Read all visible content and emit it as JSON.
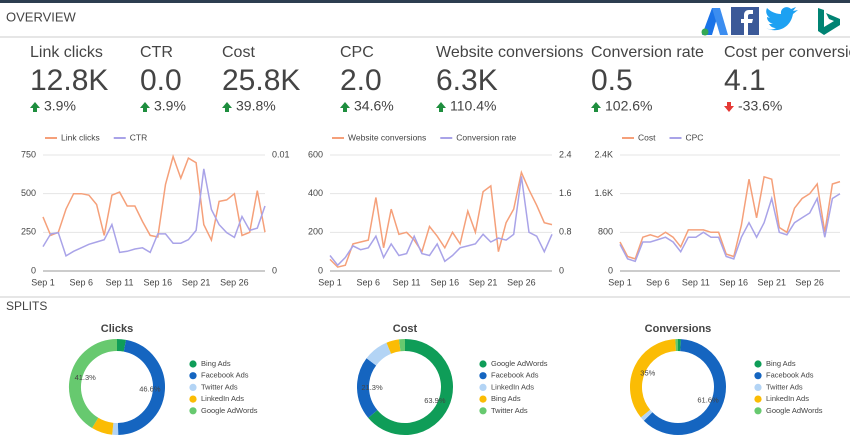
{
  "header": {
    "title": "OVERVIEW"
  },
  "kpis": [
    {
      "label": "Link clicks",
      "value": "12.8K",
      "change": "3.9%"
    },
    {
      "label": "CTR",
      "value": "0.0",
      "change": "3.9%"
    },
    {
      "label": "Cost",
      "value": "25.8K",
      "change": "39.8%"
    },
    {
      "label": "CPC",
      "value": "2.0",
      "change": "34.6%"
    },
    {
      "label": "Website conversions",
      "value": "6.3K",
      "change": "110.4%"
    },
    {
      "label": "Conversion rate",
      "value": "0.5",
      "change": "102.6%"
    },
    {
      "label": "Cost per conversion",
      "value": "4.1",
      "change": "-33.6%"
    }
  ],
  "splits_title": "SPLITS",
  "chart_data": [
    {
      "type": "line",
      "categories": [
        "Sep 1",
        null,
        null,
        null,
        null,
        "Sep 6",
        null,
        null,
        null,
        null,
        "Sep 11",
        null,
        null,
        null,
        null,
        "Sep 16",
        null,
        null,
        null,
        null,
        "Sep 21",
        null,
        null,
        null,
        null,
        "Sep 26",
        null,
        null,
        null,
        null
      ],
      "series": [
        {
          "name": "Link clicks",
          "color": "#f5a07a",
          "values": [
            350,
            230,
            250,
            400,
            500,
            500,
            490,
            430,
            230,
            490,
            510,
            420,
            420,
            320,
            230,
            220,
            560,
            740,
            600,
            730,
            700,
            300,
            200,
            450,
            460,
            500,
            230,
            250,
            520,
            250
          ]
        },
        {
          "name": "CTR",
          "color": "#a9a3e8",
          "axis": "y2",
          "values": [
            0.0021,
            0.0032,
            0.0033,
            0.0013,
            0.0017,
            0.002,
            0.0023,
            0.0025,
            0.0027,
            0.004,
            0.0016,
            0.0017,
            0.0019,
            0.002,
            0.0016,
            0.0032,
            0.0032,
            0.0024,
            0.0024,
            0.0027,
            0.0035,
            0.0088,
            0.0053,
            0.004,
            0.0033,
            0.0029,
            0.0047,
            0.0035,
            0.0037,
            0.0056
          ]
        }
      ],
      "ylim": [
        0,
        750
      ],
      "yticks": [
        0,
        250,
        500,
        750
      ],
      "y2lim": [
        0,
        0.01
      ],
      "y2ticks": [
        0,
        0.01
      ],
      "grid": true
    },
    {
      "type": "line",
      "categories": [
        "Sep 1",
        null,
        null,
        null,
        null,
        "Sep 6",
        null,
        null,
        null,
        null,
        "Sep 11",
        null,
        null,
        null,
        null,
        "Sep 16",
        null,
        null,
        null,
        null,
        "Sep 21",
        null,
        null,
        null,
        null,
        "Sep 26",
        null,
        null,
        null,
        null
      ],
      "series": [
        {
          "name": "Website conversions",
          "color": "#f5a07a",
          "values": [
            60,
            20,
            30,
            140,
            150,
            160,
            380,
            120,
            320,
            190,
            200,
            160,
            100,
            230,
            180,
            120,
            200,
            140,
            310,
            200,
            410,
            440,
            100,
            250,
            320,
            510,
            420,
            340,
            250,
            240
          ]
        },
        {
          "name": "Conversion rate",
          "color": "#a9a3e8",
          "axis": "y2",
          "values": [
            0.32,
            0.12,
            0.28,
            0.52,
            0.44,
            0.48,
            0.72,
            0.28,
            0.56,
            0.32,
            0.36,
            0.72,
            0.36,
            0.32,
            0.56,
            0.2,
            0.32,
            0.48,
            0.52,
            0.56,
            0.76,
            0.6,
            0.68,
            0.64,
            0.76,
            1.96,
            0.8,
            0.72,
            0.4,
            0.76
          ]
        }
      ],
      "ylim": [
        0,
        600
      ],
      "yticks": [
        0,
        200,
        400,
        600
      ],
      "y2lim": [
        0,
        2.4
      ],
      "y2ticks": [
        0,
        0.8,
        1.6,
        2.4
      ],
      "grid": true
    },
    {
      "type": "line",
      "categories": [
        "Sep 1",
        null,
        null,
        null,
        null,
        "Sep 6",
        null,
        null,
        null,
        null,
        "Sep 11",
        null,
        null,
        null,
        null,
        "Sep 16",
        null,
        null,
        null,
        null,
        "Sep 21",
        null,
        null,
        null,
        null,
        "Sep 26",
        null,
        null,
        null,
        null
      ],
      "series": [
        {
          "name": "Cost",
          "color": "#f5a07a",
          "values": [
            600,
            300,
            250,
            700,
            750,
            700,
            800,
            700,
            500,
            850,
            850,
            850,
            800,
            800,
            350,
            300,
            950,
            1900,
            1100,
            1950,
            1900,
            900,
            800,
            1300,
            1500,
            1600,
            1800,
            800,
            1800,
            1850
          ]
        },
        {
          "name": "CPC",
          "color": "#a9a3e8",
          "values": [
            550,
            250,
            200,
            600,
            600,
            650,
            700,
            600,
            400,
            700,
            700,
            800,
            700,
            700,
            300,
            250,
            700,
            1000,
            700,
            1000,
            1500,
            800,
            750,
            1000,
            1100,
            1200,
            1500,
            700,
            1500,
            1600
          ]
        }
      ],
      "ylim": [
        0,
        2400
      ],
      "yticks": [
        0,
        800,
        {
          "value": 1600,
          "label": "1.6K"
        },
        {
          "value": 2400,
          "label": "2.4K"
        }
      ],
      "grid": true
    },
    {
      "type": "donut",
      "title": "Clicks",
      "categories": [
        "Bing Ads",
        "Facebook Ads",
        "Twitter Ads",
        "LinkedIn Ads",
        "Google AdWords"
      ],
      "colors": [
        "#0f9d58",
        "#1565c0",
        "#b3d4f5",
        "#fbbc04",
        "#67c96f"
      ],
      "values": [
        3,
        46.6,
        2,
        7.1,
        41.3
      ],
      "value_labels": [
        null,
        "46.6%",
        null,
        null,
        "41.3%"
      ]
    },
    {
      "type": "donut",
      "title": "Cost",
      "categories": [
        "Google AdWords",
        "Facebook Ads",
        "LinkedIn Ads",
        "Bing Ads",
        "Twitter Ads"
      ],
      "colors": [
        "#0f9d58",
        "#1565c0",
        "#b3d4f5",
        "#fbbc04",
        "#67c96f"
      ],
      "values": [
        63.9,
        21.3,
        8.5,
        4.3,
        2
      ],
      "value_labels": [
        "63.9%",
        "21.3%",
        null,
        null,
        null
      ]
    },
    {
      "type": "donut",
      "title": "Conversions",
      "categories": [
        "Bing Ads",
        "Facebook Ads",
        "Twitter Ads",
        "LinkedIn Ads",
        "Google AdWords"
      ],
      "colors": [
        "#0f9d58",
        "#1565c0",
        "#b3d4f5",
        "#fbbc04",
        "#67c96f"
      ],
      "values": [
        1,
        61.6,
        1.5,
        35,
        0.9
      ],
      "value_labels": [
        null,
        "61.6%",
        null,
        "35%",
        null
      ]
    }
  ]
}
